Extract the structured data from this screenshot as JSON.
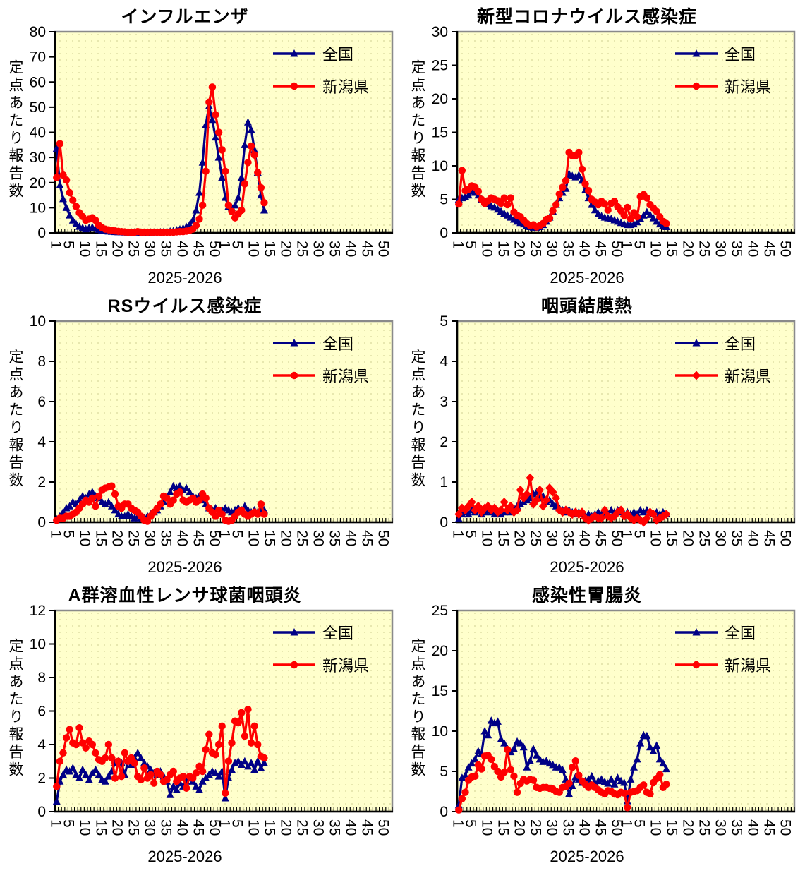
{
  "style": {
    "plot_bg": "#FFFFCC",
    "plot_dot": "#E0E0A6",
    "frame_color": "#8A8A8A",
    "axis_color": "#000000",
    "national_color": "#000086",
    "niigata_color": "#FF0000"
  },
  "x_axis": {
    "weeks_per_year": 52,
    "years": 2,
    "tick_labels_per_year": [
      "1",
      "5",
      "10",
      "15",
      "20",
      "25",
      "30",
      "35",
      "40",
      "45",
      "50"
    ]
  },
  "chart_data": [
    {
      "type": "line",
      "title": "インフルエンザ",
      "ylabel": "定点あたり報告数",
      "xlabel": "2025-2026",
      "ymax": 80,
      "ystep": 10,
      "series": [
        {
          "name": "全国",
          "color": "#000086",
          "marker": "triangle",
          "values": [
            33.5,
            19,
            13.5,
            10,
            7,
            5,
            3.5,
            2.5,
            2,
            1.5,
            2,
            2.2,
            1.8,
            1.3,
            1,
            0.8,
            0.6,
            0.5,
            0.4,
            0.3,
            0.3,
            0.2,
            0.2,
            0.2,
            0.2,
            0.2,
            0.1,
            0.1,
            0.1,
            0.2,
            0.2,
            0.3,
            0.3,
            0.4,
            0.5,
            0.6,
            0.8,
            1.1,
            1.4,
            1.8,
            2.4,
            3.2,
            5,
            9,
            16,
            28,
            43,
            50.5,
            45,
            38,
            30,
            22,
            14,
            10.5,
            10,
            11,
            14,
            22,
            35,
            44,
            41,
            33,
            24,
            15,
            9
          ]
        },
        {
          "name": "新潟県",
          "color": "#FF0000",
          "marker": "circle",
          "values": [
            22,
            35.5,
            23,
            21,
            16,
            13,
            10.5,
            8,
            6.5,
            5,
            5.5,
            6,
            5,
            3,
            2,
            1.5,
            1.2,
            1,
            0.8,
            0.6,
            0.5,
            0.4,
            0.3,
            0.3,
            0.3,
            0.5,
            0.3,
            0.3,
            0.3,
            0.3,
            0.3,
            0.3,
            0.3,
            0.3,
            0.3,
            0.3,
            0.3,
            0.4,
            0.5,
            0.5,
            0.7,
            1,
            1.5,
            3,
            5.5,
            11,
            24.5,
            52,
            58,
            47,
            40,
            33,
            24.5,
            11,
            8.5,
            6,
            7.5,
            9,
            19.5,
            28,
            34.5,
            31,
            24,
            18,
            12
          ]
        }
      ]
    },
    {
      "type": "line",
      "title": "新型コロナウイルス感染症",
      "ylabel": "定点あたり報告数",
      "xlabel": "2025-2026",
      "ymax": 30,
      "ystep": 5,
      "series": [
        {
          "name": "全国",
          "color": "#000086",
          "marker": "triangle",
          "values": [
            5,
            5.2,
            5.4,
            5.6,
            6.2,
            6,
            5.6,
            5,
            4.6,
            4.3,
            4,
            3.8,
            3.5,
            3.2,
            2.9,
            2.6,
            2.3,
            2,
            1.7,
            1.5,
            1.3,
            1.1,
            0.9,
            0.8,
            0.8,
            0.9,
            1.2,
            1.7,
            2.3,
            3.2,
            4.2,
            5.2,
            6,
            6.6,
            8.8,
            8.5,
            8.3,
            8.6,
            7.8,
            6.4,
            5.2,
            4.2,
            3.4,
            2.8,
            2.5,
            2.3,
            2.2,
            2.1,
            1.9,
            1.7,
            1.5,
            1.3,
            1.2,
            1.2,
            1.3,
            1.6,
            2.1,
            2.6,
            3.1,
            2.7,
            2.2,
            1.7,
            1.3,
            1.1,
            0.9
          ]
        },
        {
          "name": "新潟県",
          "color": "#FF0000",
          "marker": "circle",
          "values": [
            4.3,
            9.3,
            6.3,
            6.5,
            7,
            6.8,
            6.2,
            5,
            4.4,
            4.8,
            5.2,
            5,
            4.8,
            4.4,
            5.2,
            4.2,
            5.2,
            3.1,
            2.6,
            2.4,
            1.9,
            1.4,
            1.1,
            1.2,
            0.9,
            1.1,
            1.4,
            2,
            2.2,
            3.3,
            4.2,
            5.8,
            6.8,
            7.8,
            12,
            11.5,
            11.5,
            12,
            9.5,
            7.3,
            6.3,
            5,
            4.6,
            4.2,
            4.7,
            4.3,
            3.4,
            4.4,
            4.7,
            3.9,
            3.3,
            2.6,
            3.8,
            2.1,
            3,
            2.4,
            5.4,
            5.7,
            5.2,
            4.2,
            3.7,
            3.2,
            2.4,
            1.7,
            1.4
          ]
        }
      ]
    },
    {
      "type": "line",
      "title": "RSウイルス感染症",
      "ylabel": "定点あたり報告数",
      "xlabel": "2025-2026",
      "ymax": 10,
      "ystep": 2,
      "series": [
        {
          "name": "全国",
          "color": "#000086",
          "marker": "triangle",
          "values": [
            0.15,
            0.3,
            0.5,
            0.7,
            0.8,
            1,
            0.9,
            1.1,
            1.3,
            1.2,
            1.4,
            1.5,
            1.3,
            1.2,
            1,
            0.9,
            1,
            0.8,
            0.6,
            0.4,
            0.3,
            0.3,
            0.4,
            0.3,
            0.2,
            0.3,
            0.2,
            0.2,
            0.3,
            0.4,
            0.5,
            0.6,
            0.8,
            1,
            1.2,
            1.5,
            1.8,
            1.7,
            1.8,
            1.6,
            1.7,
            1.5,
            1.3,
            1.2,
            1.3,
            1.1,
            0.9,
            0.7,
            0.6,
            0.7,
            0.5,
            0.6,
            0.7,
            0.6,
            0.5,
            0.6,
            0.7,
            0.6,
            0.8,
            0.6,
            0.5,
            0.6,
            0.5,
            0.6,
            0.6
          ]
        },
        {
          "name": "新潟県",
          "color": "#FF0000",
          "marker": "circle",
          "values": [
            0.1,
            0.2,
            0.2,
            0.3,
            0.3,
            0.4,
            0.5,
            0.7,
            0.9,
            1.1,
            1,
            1.2,
            0.8,
            1.3,
            1.6,
            1.7,
            1.75,
            1.8,
            1.4,
            0.8,
            0.7,
            0.9,
            0.9,
            0.7,
            0.6,
            0.5,
            0.3,
            0.1,
            0.05,
            0.3,
            0.5,
            0.7,
            0.9,
            1.3,
            1.2,
            0.9,
            1.1,
            1.4,
            1.5,
            1.1,
            1,
            1.1,
            1.2,
            1,
            1.1,
            1.4,
            1.2,
            0.7,
            0.5,
            0.3,
            0.6,
            0.4,
            0.1,
            0.05,
            0.1,
            0.3,
            0.5,
            0.6,
            0.4,
            0.3,
            0.4,
            0.5,
            0.4,
            0.9,
            0.4
          ]
        }
      ]
    },
    {
      "type": "line",
      "title": "咽頭結膜熱",
      "ylabel": "定点あたり報告数",
      "xlabel": "2025-2026",
      "ymax": 5,
      "ystep": 1,
      "series": [
        {
          "name": "全国",
          "color": "#000086",
          "marker": "triangle",
          "values": [
            0.08,
            0.2,
            0.25,
            0.2,
            0.3,
            0.25,
            0.3,
            0.2,
            0.25,
            0.3,
            0.25,
            0.2,
            0.25,
            0.2,
            0.25,
            0.3,
            0.25,
            0.35,
            0.4,
            0.45,
            0.5,
            0.55,
            0.6,
            0.7,
            0.75,
            0.6,
            0.65,
            0.5,
            0.55,
            0.45,
            0.4,
            0.35,
            0.3,
            0.25,
            0.3,
            0.25,
            0.2,
            0.25,
            0.2,
            0.15,
            0.2,
            0.15,
            0.2,
            0.25,
            0.2,
            0.25,
            0.2,
            0.3,
            0.25,
            0.3,
            0.25,
            0.2,
            0.25,
            0.2,
            0.25,
            0.2,
            0.3,
            0.25,
            0.3,
            0.25,
            0.2,
            0.25,
            0.2,
            0.25,
            0.2
          ]
        },
        {
          "name": "新潟県",
          "color": "#FF0000",
          "marker": "diamond",
          "values": [
            0.2,
            0.35,
            0.3,
            0.4,
            0.5,
            0.3,
            0.4,
            0.25,
            0.35,
            0.4,
            0.3,
            0.35,
            0.25,
            0.3,
            0.5,
            0.3,
            0.4,
            0.25,
            0.3,
            0.8,
            0.6,
            0.7,
            1.1,
            0.45,
            0.55,
            0.8,
            0.4,
            0.55,
            0.85,
            0.75,
            0.6,
            0.3,
            0.25,
            0.3,
            0.25,
            0.2,
            0.25,
            0.2,
            0.25,
            0.1,
            0.05,
            0.1,
            0.15,
            0.1,
            0.1,
            0.3,
            0.15,
            0.1,
            0.15,
            0.25,
            0.3,
            0.15,
            0.2,
            0.1,
            0.05,
            0.1,
            0.05,
            0,
            0.1,
            0.25,
            0.2,
            0.05,
            0.1,
            0.15,
            0.2
          ]
        }
      ]
    },
    {
      "type": "line",
      "title": "A群溶血性レンサ球菌咽頭炎",
      "ylabel": "定点あたり報告数",
      "xlabel": "2025-2026",
      "ymax": 12,
      "ystep": 2,
      "series": [
        {
          "name": "全国",
          "color": "#000086",
          "marker": "triangle",
          "values": [
            0.6,
            1.8,
            2.2,
            2.5,
            2.4,
            2.6,
            2.2,
            2,
            2.5,
            2.2,
            1.9,
            2.3,
            2.5,
            2.2,
            1.9,
            1.8,
            2.1,
            2.4,
            2.9,
            3,
            2.9,
            2.2,
            3,
            2.8,
            3.2,
            3.5,
            3.2,
            2.9,
            2.7,
            2.5,
            2.3,
            2.2,
            2.4,
            2.1,
            1.8,
            1,
            1.5,
            1.3,
            1.7,
            1.5,
            1.8,
            2,
            1.8,
            1.5,
            1.3,
            1.8,
            2,
            2.2,
            2.4,
            2.3,
            2.1,
            2.4,
            0.8,
            2,
            2.5,
            2.9,
            3,
            2.8,
            3,
            2.7,
            2.9,
            2.5,
            3,
            2.6,
            2.9
          ]
        },
        {
          "name": "新潟県",
          "color": "#FF0000",
          "marker": "circle",
          "values": [
            1.5,
            3,
            3.5,
            4.4,
            4.9,
            4.1,
            4,
            5,
            4.1,
            3.8,
            4.2,
            4,
            3.5,
            3.1,
            3,
            3.2,
            4,
            3.2,
            2,
            3,
            2.1,
            3.5,
            3,
            3.2,
            2.9,
            2.1,
            1.9,
            2.6,
            2,
            2.2,
            1.7,
            2.4,
            2.2,
            1.8,
            1.9,
            2.2,
            2.4,
            1.8,
            2,
            2.1,
            1.4,
            2.1,
            2,
            2.3,
            2.7,
            2.4,
            3.7,
            4.6,
            3.5,
            3.4,
            4,
            5.1,
            1.1,
            3,
            4.1,
            5.4,
            5.3,
            5.9,
            4.5,
            6.1,
            4.1,
            5.1,
            4,
            3.3,
            3.2
          ]
        }
      ]
    },
    {
      "type": "line",
      "title": "感染性胃腸炎",
      "ylabel": "定点あたり報告数",
      "xlabel": "2025-2026",
      "ymax": 25,
      "ystep": 5,
      "series": [
        {
          "name": "全国",
          "color": "#000086",
          "marker": "triangle",
          "values": [
            0.8,
            4.2,
            4.5,
            5.5,
            6,
            6.5,
            7.5,
            7.2,
            10,
            9.5,
            11.3,
            11,
            11.2,
            9,
            8.5,
            7.8,
            7.4,
            7.8,
            8.7,
            8.5,
            8,
            5.5,
            6.3,
            7.8,
            7,
            6.5,
            6.2,
            6.3,
            6,
            5.8,
            5.5,
            5.5,
            5.2,
            4,
            2.2,
            3.2,
            4.3,
            4,
            3.6,
            3.8,
            4,
            4.4,
            3.6,
            3.8,
            4,
            3.7,
            3.5,
            4,
            3.4,
            4.2,
            3.8,
            3.6,
            1.3,
            4,
            5.5,
            6.5,
            8.5,
            9.5,
            9.4,
            8,
            7.5,
            8.2,
            6.5,
            6,
            5.3
          ]
        },
        {
          "name": "新潟県",
          "color": "#FF0000",
          "marker": "circle",
          "values": [
            0.2,
            1.6,
            2.4,
            3.9,
            4.3,
            4.4,
            5.8,
            5.3,
            6.9,
            7,
            6.5,
            5.6,
            5,
            4.3,
            4.9,
            7.7,
            5.2,
            4.4,
            2.4,
            3.5,
            4,
            3.8,
            4,
            3.9,
            3,
            2.9,
            3,
            3,
            2.9,
            2.8,
            2.5,
            2.4,
            3,
            3.1,
            3.5,
            5.5,
            6.3,
            4.5,
            3.8,
            3.4,
            3,
            3.3,
            3,
            2.7,
            2.4,
            2.2,
            2.6,
            2.5,
            2.2,
            2.1,
            2.4,
            2.3,
            0.5,
            2.4,
            2.5,
            2.6,
            3,
            3.3,
            2.4,
            2.2,
            3.6,
            4.1,
            4.6,
            3,
            3.4
          ]
        }
      ]
    }
  ]
}
